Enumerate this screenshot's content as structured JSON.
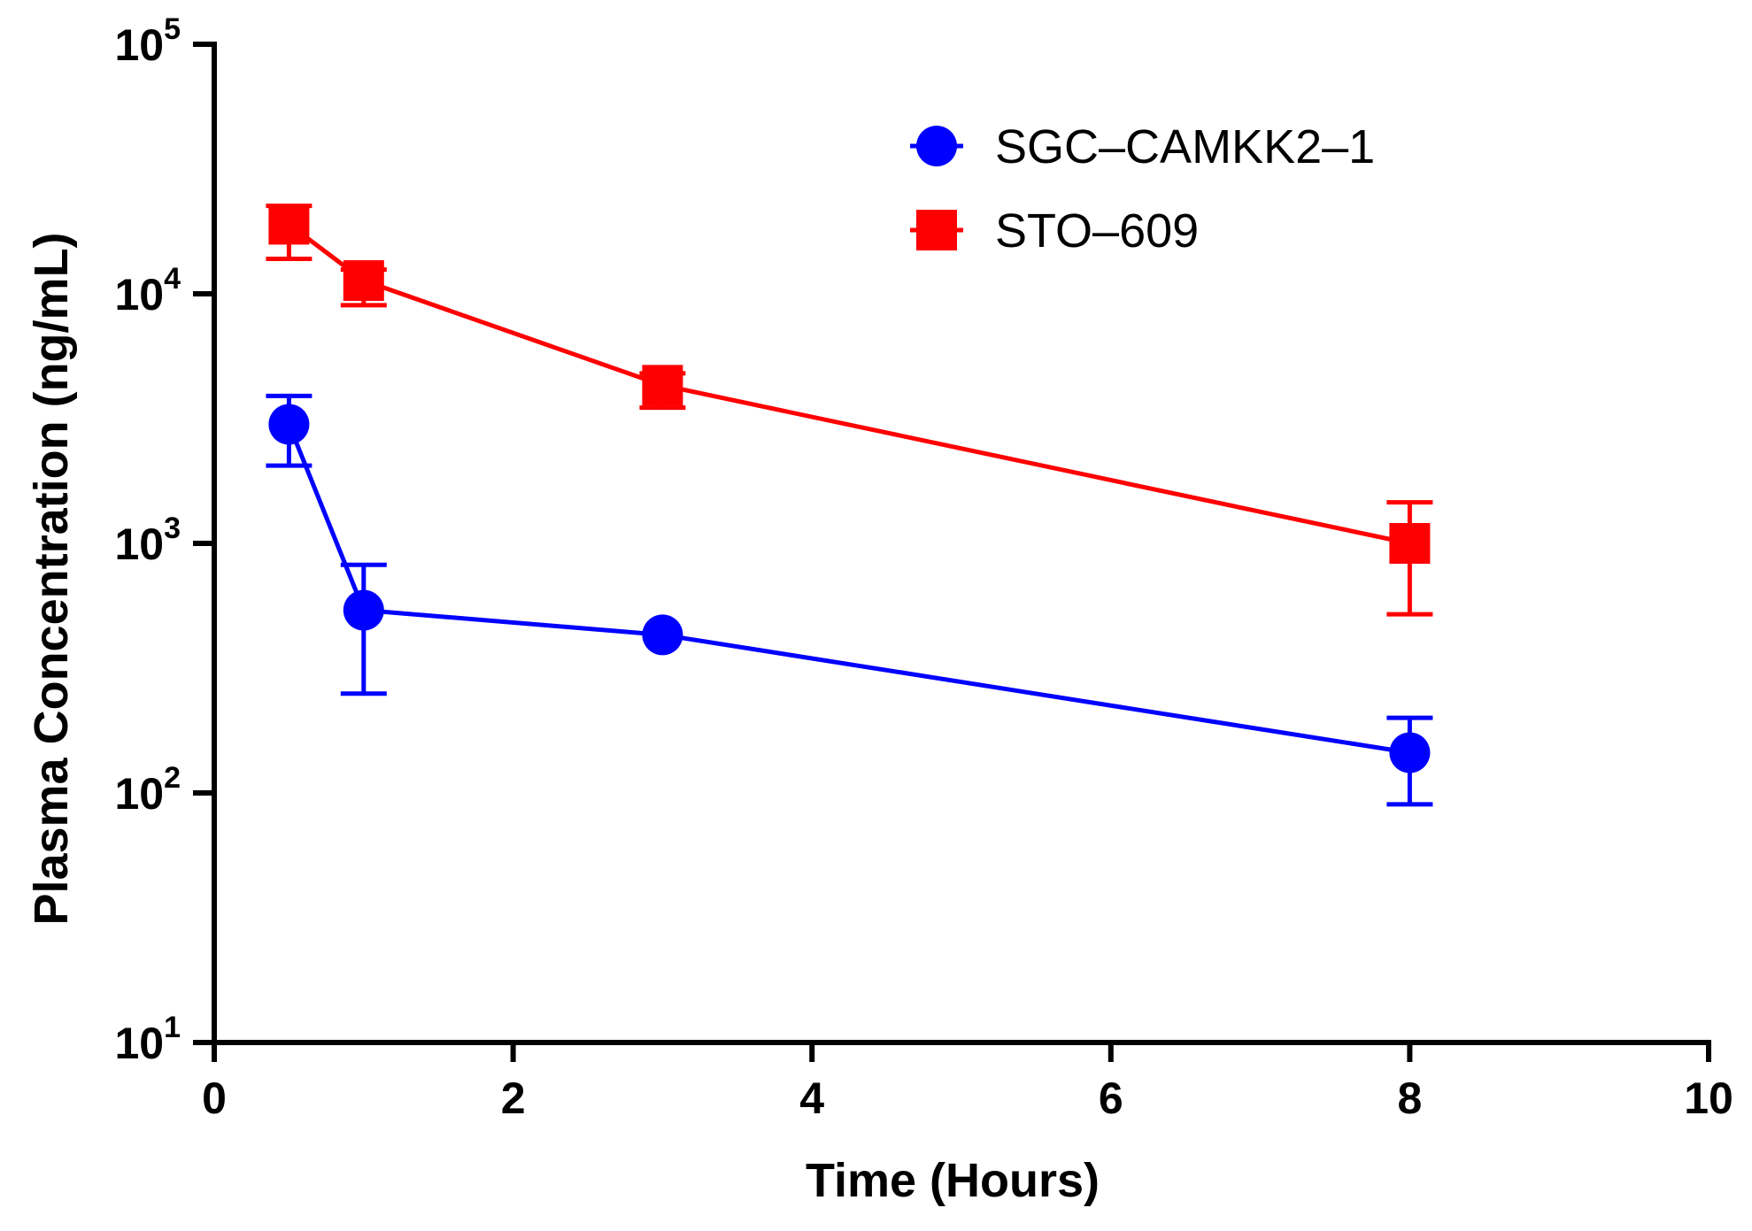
{
  "chart_data": {
    "type": "line",
    "title": "",
    "xlabel": "Time (Hours)",
    "ylabel": "Plasma Concentration (ng/mL)",
    "xlim": [
      0,
      10
    ],
    "ylim": [
      10,
      100000
    ],
    "yscale": "log",
    "x_ticks": [
      {
        "value": 0,
        "label": "0"
      },
      {
        "value": 2,
        "label": "2"
      },
      {
        "value": 4,
        "label": "4"
      },
      {
        "value": 6,
        "label": "6"
      },
      {
        "value": 8,
        "label": "8"
      },
      {
        "value": 10,
        "label": "10"
      }
    ],
    "y_ticks": [
      {
        "value": 10,
        "base": "10",
        "exp": "1"
      },
      {
        "value": 100,
        "base": "10",
        "exp": "2"
      },
      {
        "value": 1000,
        "base": "10",
        "exp": "3"
      },
      {
        "value": 10000,
        "base": "10",
        "exp": "4"
      },
      {
        "value": 100000,
        "base": "10",
        "exp": "5"
      }
    ],
    "legend_position": "top-right",
    "series": [
      {
        "name": "SGC–CAMKK2–1",
        "color": "#0000ff",
        "marker": "circle",
        "x": [
          0.5,
          1,
          3,
          8
        ],
        "y": [
          3000,
          540,
          430,
          145
        ],
        "y_upper": [
          3900,
          820,
          430,
          200
        ],
        "y_lower": [
          2050,
          250,
          430,
          90
        ]
      },
      {
        "name": "STO–609",
        "color": "#ff0000",
        "marker": "square",
        "x": [
          0.5,
          1,
          3,
          8
        ],
        "y": [
          19000,
          11300,
          4300,
          1000
        ],
        "y_upper": [
          22500,
          12500,
          4800,
          1460
        ],
        "y_lower": [
          13800,
          9000,
          3500,
          520
        ]
      }
    ]
  }
}
